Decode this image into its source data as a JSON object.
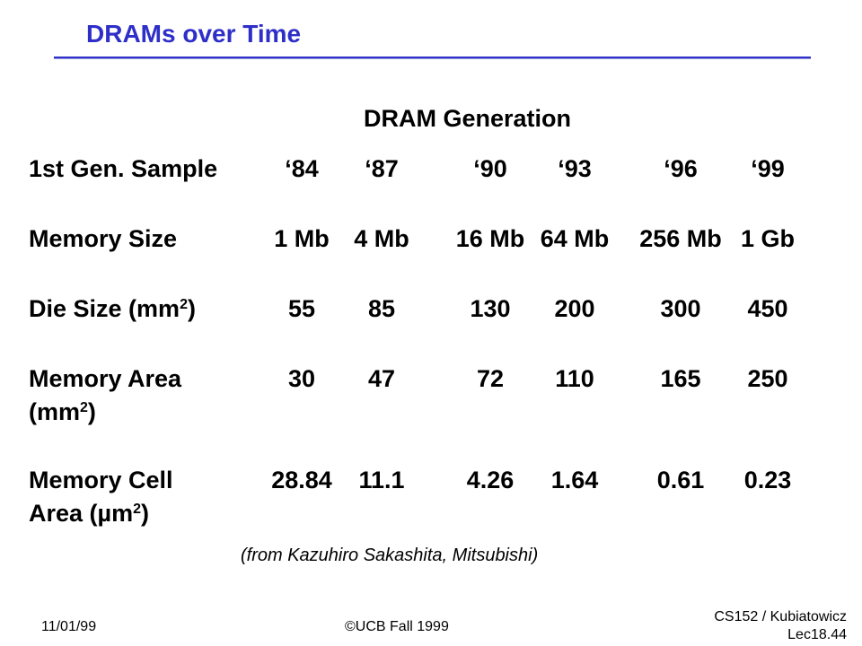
{
  "slide": {
    "title": "DRAMs over Time",
    "generation_heading": "DRAM Generation",
    "source": "(from Kazuhiro Sakashita, Mitsubishi)"
  },
  "table": {
    "rows": [
      {
        "label": "1st Gen. Sample",
        "values": [
          "‘84",
          "‘87",
          "‘90",
          "‘93",
          "‘96",
          "‘99"
        ]
      },
      {
        "label": "Memory Size",
        "values": [
          "1 Mb",
          "4 Mb",
          "16 Mb",
          "64 Mb",
          "256 Mb",
          "1 Gb"
        ]
      },
      {
        "label_main": "Die Size (mm",
        "label_sup": "2",
        "label_end": ")",
        "values": [
          "55",
          "85",
          "130",
          "200",
          "300",
          "450"
        ]
      },
      {
        "label_line1": "Memory Area",
        "label_line2_main": "(mm",
        "label_line2_sup": "2",
        "label_line2_end": ")",
        "values": [
          "30",
          "47",
          "72",
          "110",
          "165",
          "250"
        ]
      },
      {
        "label_line1": "Memory Cell",
        "label_line2_main": "Area (µm",
        "label_line2_sup": "2",
        "label_line2_end": ")",
        "values": [
          "28.84",
          "11.1",
          "4.26",
          "1.64",
          "0.61",
          "0.23"
        ]
      }
    ]
  },
  "footer": {
    "date": "11/01/99",
    "copyright": "©UCB Fall 1999",
    "course": "CS152 / Kubiatowicz",
    "lecture": "Lec18.44"
  },
  "colors": {
    "title": "#2e2ec8"
  }
}
